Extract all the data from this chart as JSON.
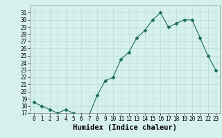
{
  "title": "",
  "xlabel": "Humidex (Indice chaleur)",
  "ylabel": "",
  "x": [
    0,
    1,
    2,
    3,
    4,
    5,
    6,
    7,
    8,
    9,
    10,
    11,
    12,
    13,
    14,
    15,
    16,
    17,
    18,
    19,
    20,
    21,
    22,
    23
  ],
  "y": [
    18.5,
    18.0,
    17.5,
    17.0,
    17.5,
    17.0,
    16.8,
    16.8,
    19.5,
    21.5,
    22.0,
    24.5,
    25.5,
    27.5,
    28.5,
    30.0,
    31.0,
    29.0,
    29.5,
    30.0,
    30.0,
    27.5,
    25.0,
    23.0
  ],
  "line_color": "#1a6b5a",
  "marker": "D",
  "marker_size": 2.5,
  "bg_color": "#d6f0ee",
  "grid_color": "#b8ddd9",
  "ylim": [
    17,
    32
  ],
  "xlim": [
    -0.5,
    23.5
  ],
  "yticks": [
    17,
    18,
    19,
    20,
    21,
    22,
    23,
    24,
    25,
    26,
    27,
    28,
    29,
    30,
    31
  ],
  "xticks": [
    0,
    1,
    2,
    3,
    4,
    5,
    6,
    7,
    8,
    9,
    10,
    11,
    12,
    13,
    14,
    15,
    16,
    17,
    18,
    19,
    20,
    21,
    22,
    23
  ],
  "tick_fontsize": 5.5,
  "xlabel_fontsize": 7.5
}
